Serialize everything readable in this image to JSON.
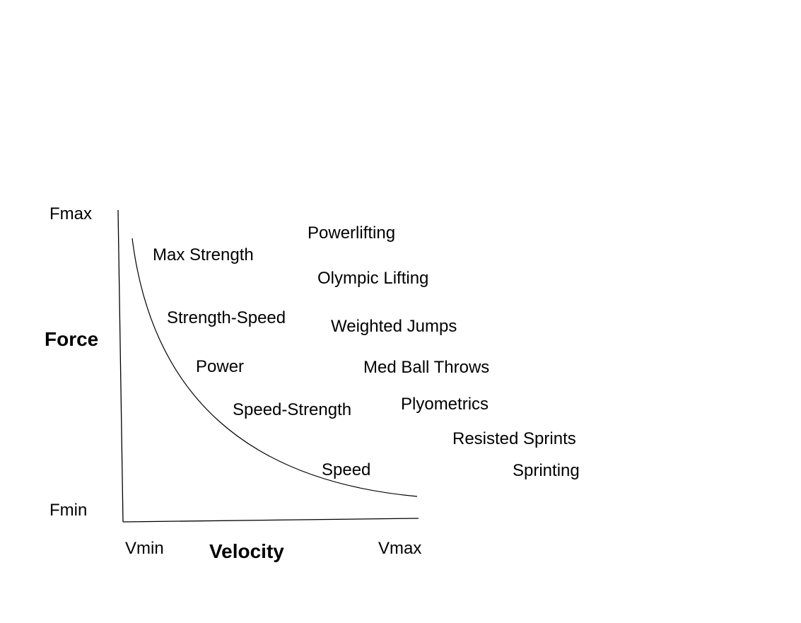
{
  "axes": {
    "y_max": "Fmax",
    "y_label": "Force",
    "y_min": "Fmin",
    "x_min": "Vmin",
    "x_label": "Velocity",
    "x_max": "Vmax"
  },
  "curve_labels": [
    "Max Strength",
    "Strength-Speed",
    "Power",
    "Speed-Strength",
    "Speed"
  ],
  "methods": [
    "Powerlifting",
    "Olympic Lifting",
    "Weighted Jumps",
    "Med Ball Throws",
    "Plyometrics",
    "Resisted Sprints",
    "Sprinting"
  ]
}
